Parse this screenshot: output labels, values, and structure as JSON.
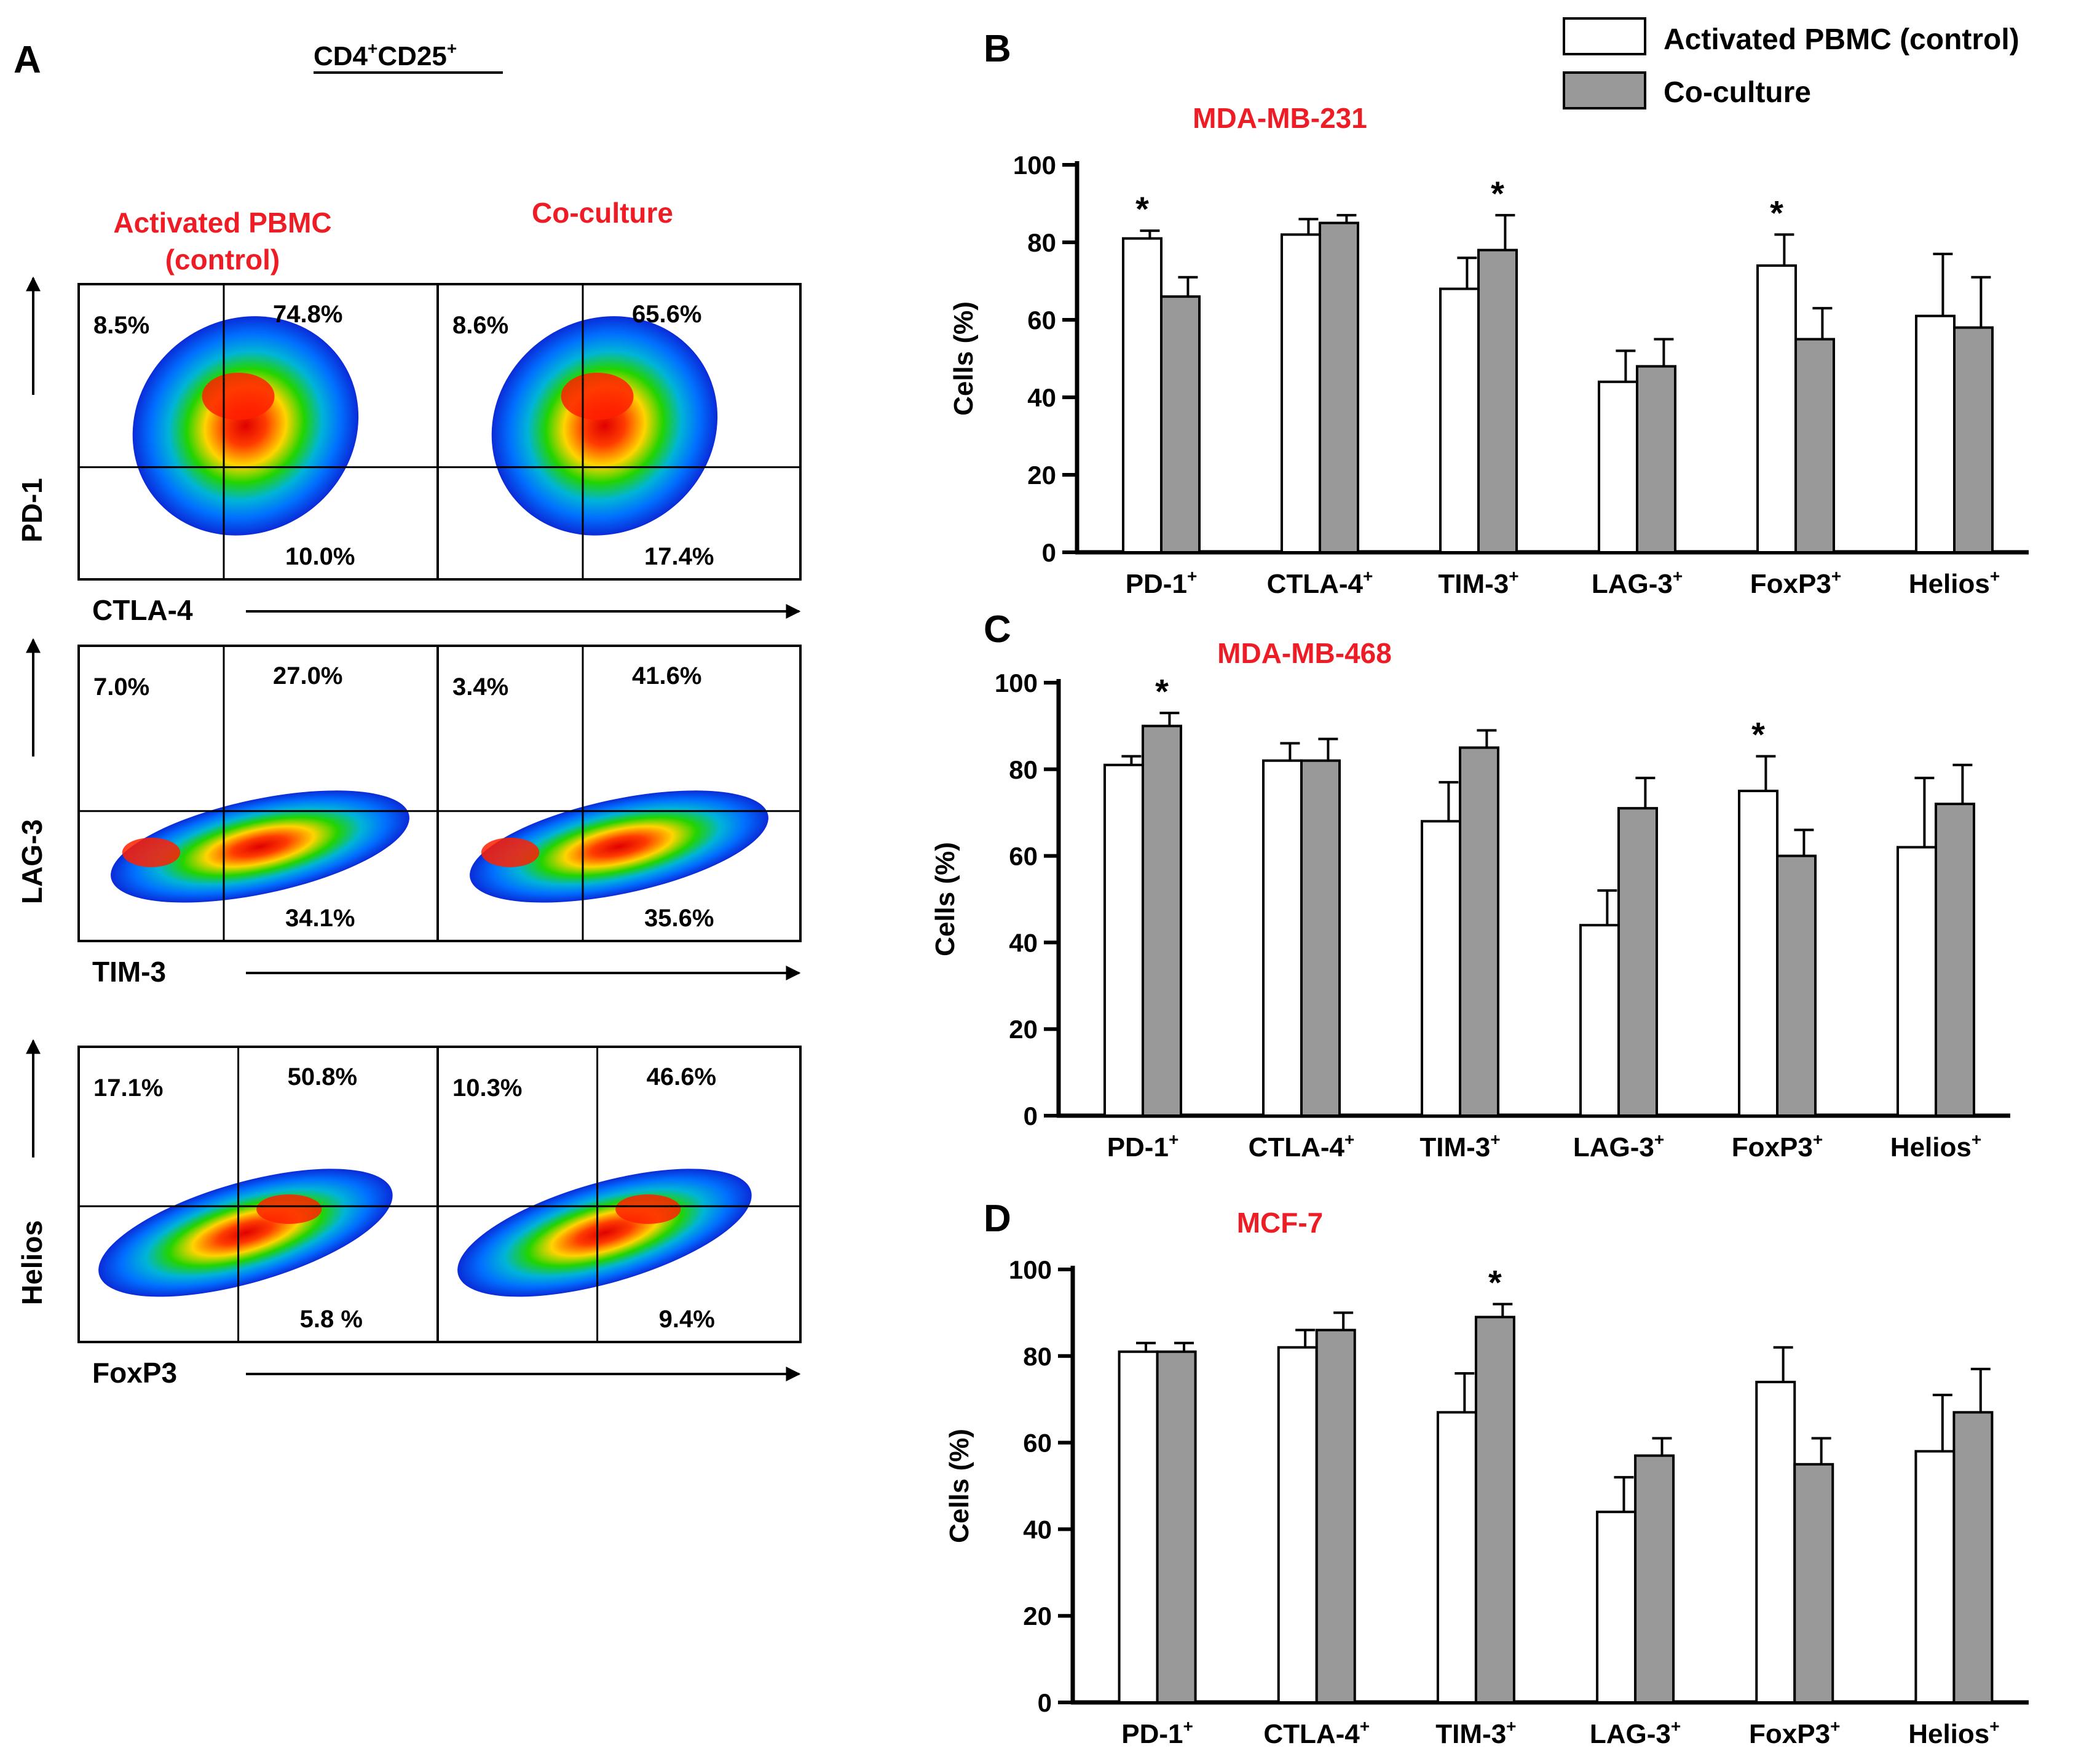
{
  "colors": {
    "accent_red": "#ee1c24",
    "bar_control": "#ffffff",
    "bar_coculture": "#999999",
    "stroke": "#000000"
  },
  "legend": {
    "control": "Activated PBMC (control)",
    "coculture": "Co-culture"
  },
  "panel_a": {
    "letter": "A",
    "title": "CD4+CD25+",
    "title_base": "CD4",
    "title_sup1": "+",
    "title_mid": "CD25",
    "title_sup2": "+",
    "col_control_line1": "Activated PBMC",
    "col_control_line2": "(control)",
    "col_coculture": "Co-culture",
    "rows": [
      {
        "y_label": "PD-1",
        "x_label": "CTLA-4",
        "control": {
          "ul": "8.5%",
          "ur": "74.8%",
          "lr": "10.0%"
        },
        "coculture": {
          "ul": "8.6%",
          "ur": "65.6%",
          "lr": "17.4%"
        }
      },
      {
        "y_label": "LAG-3",
        "x_label": "TIM-3",
        "control": {
          "ul": "7.0%",
          "ur": "27.0%",
          "lr": "34.1%"
        },
        "coculture": {
          "ul": "3.4%",
          "ur": "41.6%",
          "lr": "35.6%"
        }
      },
      {
        "y_label": "Helios",
        "x_label": "FoxP3",
        "control": {
          "ul": "17.1%",
          "ur": "50.8%",
          "lr": "5.8 %"
        },
        "coculture": {
          "ul": "10.3%",
          "ur": "46.6%",
          "lr": "9.4%"
        }
      }
    ]
  },
  "chart_data": [
    {
      "type": "bar",
      "panel": "B",
      "title": "MDA-MB-231",
      "ylabel": "Cells (%)",
      "ylim": [
        0,
        100
      ],
      "yticks": [
        0,
        20,
        40,
        60,
        80,
        100
      ],
      "categories": [
        "PD-1",
        "CTLA-4",
        "TIM-3",
        "LAG-3",
        "FoxP3",
        "Helios"
      ],
      "category_sup": "+",
      "series": [
        {
          "name": "Activated PBMC (control)",
          "values": [
            81,
            82,
            68,
            44,
            74,
            61
          ],
          "errors": [
            2,
            4,
            8,
            8,
            8,
            16
          ]
        },
        {
          "name": "Co-culture",
          "values": [
            66,
            85,
            78,
            48,
            55,
            58
          ],
          "errors": [
            5,
            2,
            9,
            7,
            8,
            13
          ]
        }
      ],
      "significance": [
        {
          "category": "PD-1",
          "series": "control",
          "label": "*"
        },
        {
          "category": "TIM-3",
          "series": "coculture",
          "label": "*"
        },
        {
          "category": "FoxP3",
          "series": "control",
          "label": "*"
        }
      ]
    },
    {
      "type": "bar",
      "panel": "C",
      "title": "MDA-MB-468",
      "ylabel": "Cells (%)",
      "ylim": [
        0,
        100
      ],
      "yticks": [
        0,
        20,
        40,
        60,
        80,
        100
      ],
      "categories": [
        "PD-1",
        "CTLA-4",
        "TIM-3",
        "LAG-3",
        "FoxP3",
        "Helios"
      ],
      "category_sup": "+",
      "series": [
        {
          "name": "Activated PBMC (control)",
          "values": [
            81,
            82,
            68,
            44,
            75,
            62
          ],
          "errors": [
            2,
            4,
            9,
            8,
            8,
            16
          ]
        },
        {
          "name": "Co-culture",
          "values": [
            90,
            82,
            85,
            71,
            60,
            72
          ],
          "errors": [
            3,
            5,
            4,
            7,
            6,
            9
          ]
        }
      ],
      "significance": [
        {
          "category": "PD-1",
          "series": "coculture",
          "label": "*"
        },
        {
          "category": "FoxP3",
          "series": "control",
          "label": "*"
        }
      ]
    },
    {
      "type": "bar",
      "panel": "D",
      "title": "MCF-7",
      "ylabel": "Cells (%)",
      "ylim": [
        0,
        100
      ],
      "yticks": [
        0,
        20,
        40,
        60,
        80,
        100
      ],
      "categories": [
        "PD-1",
        "CTLA-4",
        "TIM-3",
        "LAG-3",
        "FoxP3",
        "Helios"
      ],
      "category_sup": "+",
      "series": [
        {
          "name": "Activated PBMC (control)",
          "values": [
            81,
            82,
            67,
            44,
            74,
            58
          ],
          "errors": [
            2,
            4,
            9,
            8,
            8,
            13
          ]
        },
        {
          "name": "Co-culture",
          "values": [
            81,
            86,
            89,
            57,
            55,
            67
          ],
          "errors": [
            2,
            4,
            3,
            4,
            6,
            10
          ]
        }
      ],
      "significance": [
        {
          "category": "TIM-3",
          "series": "coculture",
          "label": "*"
        }
      ]
    }
  ]
}
